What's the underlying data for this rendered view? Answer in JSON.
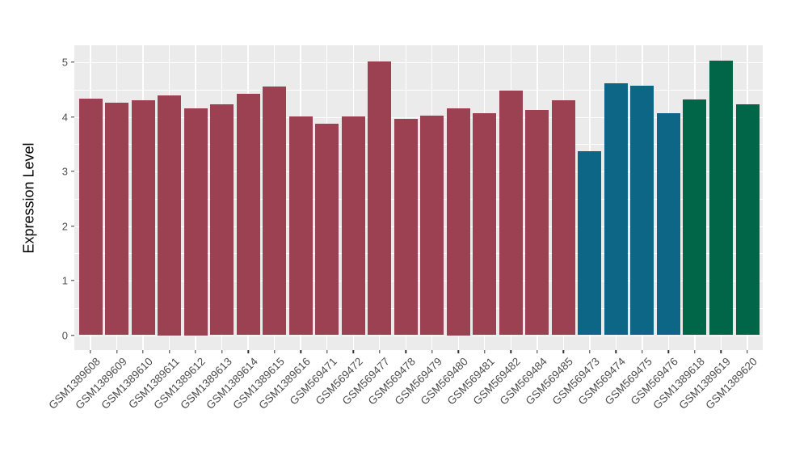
{
  "chart_data": {
    "type": "bar",
    "title": "",
    "xlabel": "",
    "ylabel": "Expression Level",
    "ylim": [
      0,
      5.3
    ],
    "yticks": [
      0,
      1,
      2,
      3,
      4,
      5
    ],
    "grid": "ggplot-style: grey panel, white major gridlines at integers, white minor gridlines at halves, vertical major gridline at each category",
    "legend_position": "none",
    "categories": [
      "GSM1389608",
      "GSM1389609",
      "GSM1389610",
      "GSM1389611",
      "GSM1389612",
      "GSM1389613",
      "GSM1389614",
      "GSM1389615",
      "GSM1389616",
      "GSM569471",
      "GSM569472",
      "GSM569477",
      "GSM569478",
      "GSM569479",
      "GSM569480",
      "GSM569481",
      "GSM569482",
      "GSM569484",
      "GSM569485",
      "GSM569473",
      "GSM569474",
      "GSM569475",
      "GSM569476",
      "GSM1389618",
      "GSM1389619",
      "GSM1389620"
    ],
    "values": [
      4.33,
      4.26,
      4.31,
      4.4,
      4.15,
      4.23,
      4.42,
      4.56,
      4.01,
      3.88,
      4.01,
      5.01,
      3.96,
      4.02,
      4.15,
      4.07,
      4.48,
      4.12,
      4.31,
      3.37,
      4.62,
      4.57,
      4.07,
      4.32,
      5.03,
      4.23
    ],
    "groups": [
      "maroon",
      "maroon",
      "maroon",
      "maroon",
      "maroon",
      "maroon",
      "maroon",
      "maroon",
      "maroon",
      "maroon",
      "maroon",
      "maroon",
      "maroon",
      "maroon",
      "maroon",
      "maroon",
      "maroon",
      "maroon",
      "maroon",
      "teal",
      "teal",
      "teal",
      "teal",
      "green",
      "green",
      "green"
    ],
    "palette": {
      "maroon": "#9b4151",
      "teal": "#0e6687",
      "green": "#006647"
    },
    "colors": {
      "panel_background": "#ebebeb",
      "gridline": "#ffffff",
      "axis_text": "#4d4d4d",
      "tick_mark": "#333333",
      "axis_title": "#000000",
      "figure_background": "#ffffff"
    }
  }
}
